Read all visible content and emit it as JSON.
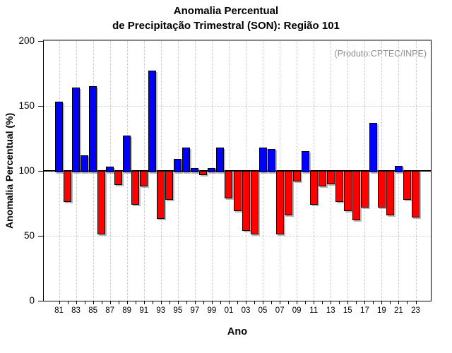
{
  "chart_data": {
    "type": "bar",
    "title_line1": "Anomalia Percentual",
    "title_line2": "de Precipitação Trimestral (SON): Região 101",
    "source_note": "(Produto:CPTEC/INPE)",
    "xlabel": "Ano",
    "ylabel": "Anomalia Percentual (%)",
    "ylim": [
      0,
      200
    ],
    "yticks": [
      0,
      50,
      100,
      150,
      200
    ],
    "baseline": 100,
    "grid": true,
    "legend_position": "none",
    "colors": {
      "above_baseline": "#0000ff",
      "below_baseline": "#ff0000",
      "baseline_line": "#000000",
      "gridline": "#c9c9c9",
      "note_text": "#8f8f8f"
    },
    "x_tick_labels": [
      "81",
      "83",
      "85",
      "87",
      "89",
      "91",
      "93",
      "95",
      "97",
      "99",
      "01",
      "03",
      "05",
      "07",
      "09",
      "11",
      "13",
      "15",
      "17",
      "19",
      "21",
      "23"
    ],
    "years": [
      1981,
      1982,
      1983,
      1984,
      1985,
      1986,
      1987,
      1988,
      1989,
      1990,
      1991,
      1992,
      1993,
      1994,
      1995,
      1996,
      1997,
      1998,
      1999,
      2000,
      2001,
      2002,
      2003,
      2004,
      2005,
      2006,
      2007,
      2008,
      2009,
      2010,
      2011,
      2012,
      2013,
      2014,
      2015,
      2016,
      2017,
      2018,
      2019,
      2020,
      2021,
      2022,
      2023
    ],
    "values": [
      153,
      77,
      164,
      112,
      165,
      52,
      103,
      90,
      127,
      75,
      89,
      177,
      64,
      79,
      109,
      118,
      102,
      98,
      102,
      118,
      80,
      70,
      55,
      52,
      118,
      117,
      52,
      67,
      93,
      115,
      75,
      89,
      91,
      77,
      70,
      63,
      73,
      137,
      73,
      67,
      104,
      79,
      65
    ]
  }
}
